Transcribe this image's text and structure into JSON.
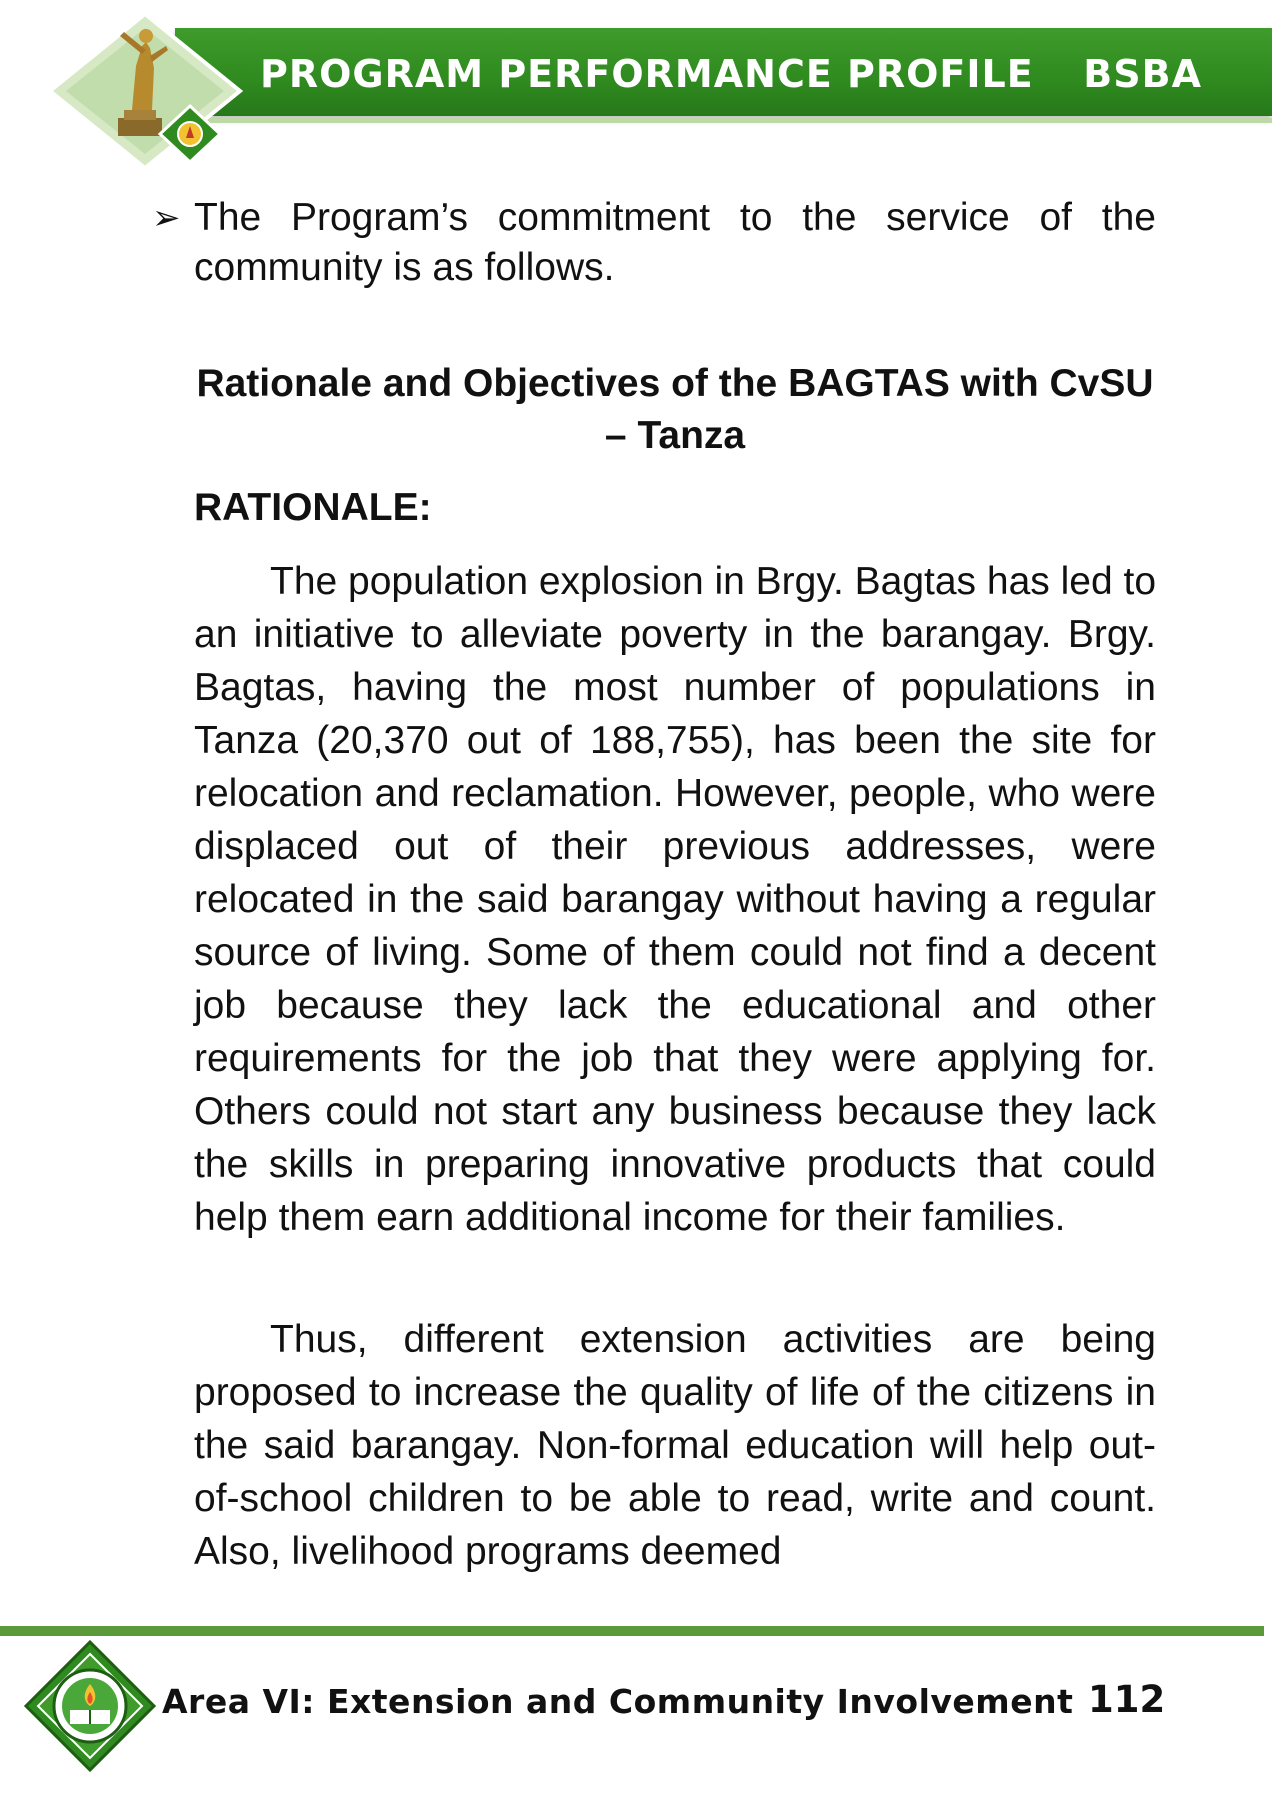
{
  "header": {
    "title": "PROGRAM PERFORMANCE PROFILE",
    "program_code": "BSBA",
    "band_color": "#2f8a1f"
  },
  "body": {
    "bullet_mark": "➢",
    "bullet_text": "The Program’s commitment to the service of the community is as follows.",
    "section_title": "Rationale and Objectives of the BAGTAS with CvSU – Tanza",
    "rationale_heading": "RATIONALE:",
    "paragraphs": [
      "The population explosion in Brgy. Bagtas has led to an initiative to alleviate poverty in the barangay.  Brgy. Bagtas, having the most number of populations in Tanza (20,370 out of 188,755), has been the site for relocation and reclamation. However, people, who were displaced out of their previous addresses, were relocated in the said barangay without having a regular source of living. Some of them could not find a decent job because they lack the educational and other requirements for the job that they were applying for.  Others could not start any business because they lack the skills in preparing innovative products that could help them earn additional income for their families.",
      "Thus, different extension activities are being proposed to increase the quality of life of the citizens in the said barangay.  Non-formal education will help out-of-school children to be able to read, write and count.  Also, livelihood programs deemed"
    ]
  },
  "footer": {
    "area_label": "Area VI: Extension and Community Involvement",
    "page_number": "112",
    "rule_color": "#5a9a3a"
  }
}
